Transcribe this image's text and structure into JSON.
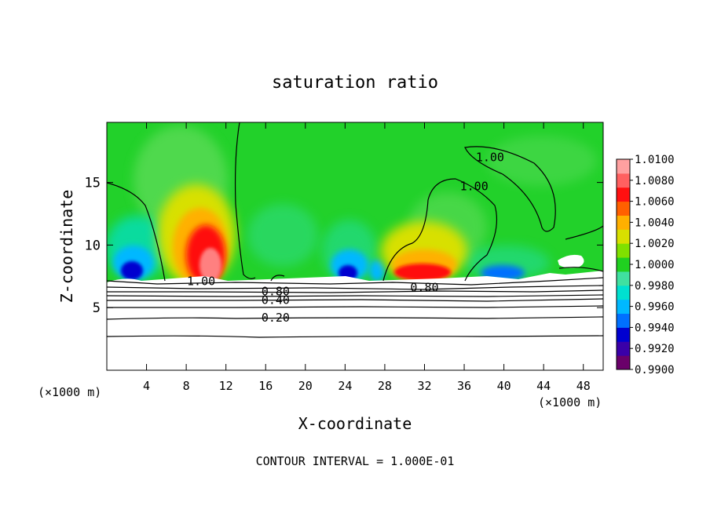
{
  "chart_data": {
    "type": "contour",
    "title": "saturation ratio",
    "xlabel": "X-coordinate",
    "ylabel": "Z-coordinate",
    "x_unit": "(×1000 m)",
    "x_ticks": [
      4,
      8,
      12,
      16,
      20,
      24,
      28,
      32,
      36,
      40,
      44,
      48
    ],
    "y_ticks": [
      5,
      10,
      15
    ],
    "xlim": [
      0,
      50
    ],
    "ylim": [
      0,
      19.8
    ],
    "footer": "CONTOUR INTERVAL = 1.000E-01",
    "colorbar": {
      "labels": [
        "1.0100",
        "1.0080",
        "1.0060",
        "1.0040",
        "1.0020",
        "1.0000",
        "0.9980",
        "0.9960",
        "0.9940",
        "0.9920",
        "0.9900"
      ],
      "colors": [
        "#6a006a",
        "#3a00a8",
        "#0000d0",
        "#0070ff",
        "#00b8ff",
        "#00e0d0",
        "#40e0a0",
        "#20d020",
        "#80e000",
        "#d8e000",
        "#ffb000",
        "#ff6000",
        "#ff1010",
        "#ff6060",
        "#ffa0a0"
      ]
    },
    "contour_labels": [
      {
        "text": "1.00",
        "x": 38.6,
        "y": 17.0
      },
      {
        "text": "1.00",
        "x": 37.0,
        "y": 14.7
      },
      {
        "text": "1.00",
        "x": 9.5,
        "y": 7.1
      },
      {
        "text": "0.80",
        "x": 17.0,
        "y": 6.3
      },
      {
        "text": "0.80",
        "x": 32.0,
        "y": 6.6
      },
      {
        "text": "0.40",
        "x": 17.0,
        "y": 5.6
      },
      {
        "text": "0.20",
        "x": 17.0,
        "y": 4.2
      }
    ],
    "contour_levels": [
      1.0,
      0.8,
      0.4,
      0.2
    ],
    "grid": false
  }
}
